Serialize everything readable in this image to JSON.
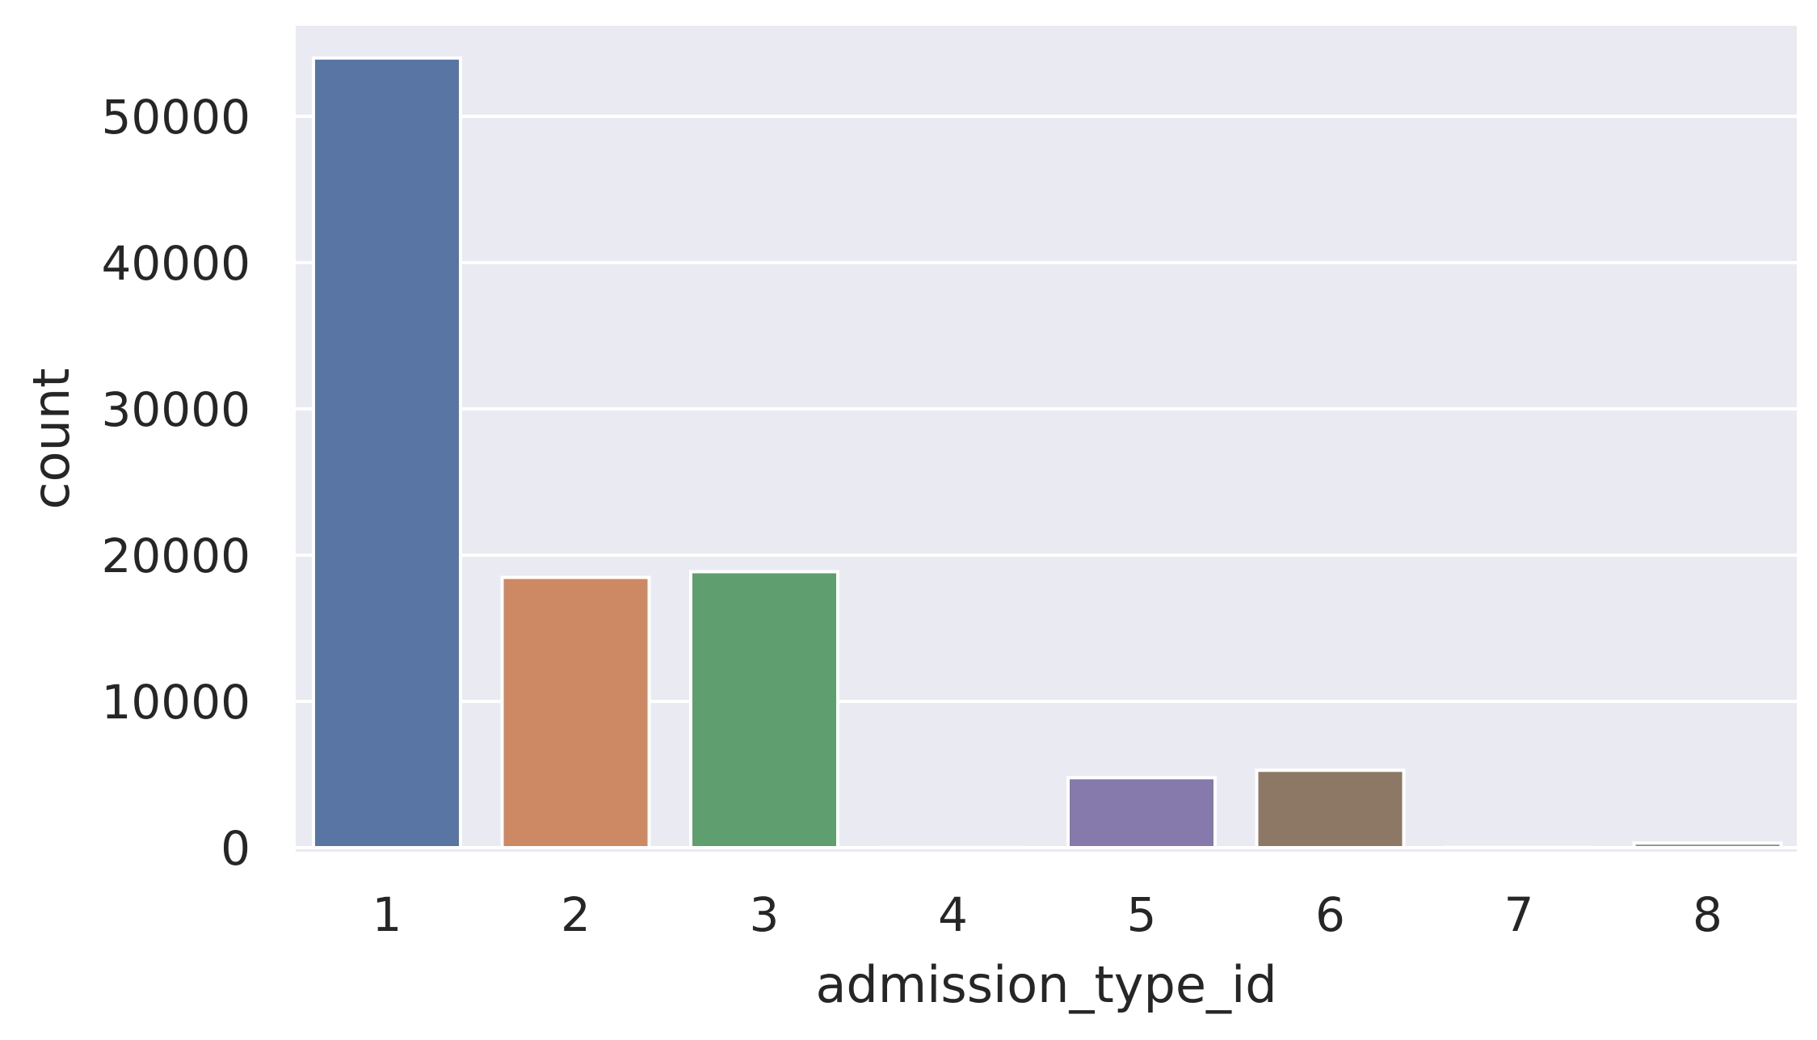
{
  "chart_data": {
    "type": "bar",
    "xlabel": "admission_type_id",
    "ylabel": "count",
    "categories": [
      "1",
      "2",
      "3",
      "4",
      "5",
      "6",
      "7",
      "8"
    ],
    "values": [
      53990,
      18480,
      18869,
      10,
      4785,
      5291,
      21,
      320
    ],
    "colors": [
      "#5975a4",
      "#cc8963",
      "#5f9e6e",
      "#b55d60",
      "#857aab",
      "#8d7866",
      "#d095bf",
      "#8c8c8c"
    ],
    "ylim": [
      0,
      56000
    ],
    "yticks": [
      "0",
      "10000",
      "20000",
      "30000",
      "40000",
      "50000"
    ],
    "grid": true,
    "background": "#eaeaf2",
    "grid_color": "#ffffff"
  }
}
